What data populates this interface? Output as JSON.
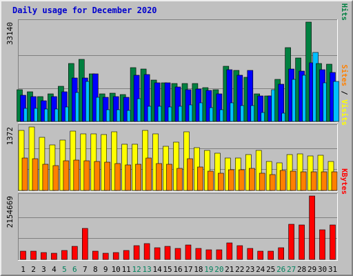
{
  "chart_data": {
    "type": "bar",
    "title": "Daily usage for December 2020",
    "categories": [
      "1",
      "2",
      "3",
      "4",
      "5",
      "6",
      "7",
      "8",
      "9",
      "10",
      "11",
      "12",
      "13",
      "14",
      "15",
      "16",
      "17",
      "18",
      "19",
      "20",
      "21",
      "22",
      "23",
      "24",
      "25",
      "26",
      "27",
      "28",
      "29",
      "30",
      "31"
    ],
    "weekend_days": [
      "5",
      "6",
      "12",
      "13",
      "19",
      "20",
      "26",
      "27"
    ],
    "colors": {
      "hits": "#008040",
      "files": "#0000ff",
      "pages": "#00c0ff",
      "visits": "#ffff00",
      "sites": "#ff8000",
      "kbytes": "#ff0000",
      "weekday_label": "#000000",
      "weekend_label": "#00805c",
      "panel_bg": "#c0c0c0",
      "title": "#0000cc"
    },
    "panels": [
      {
        "ymax_label": "33140",
        "ymax": 33140,
        "grid_fractions": [
          0.333,
          0.667
        ],
        "right_labels": [
          {
            "text": "Pages",
            "color": "#00c0ff"
          },
          {
            "text": " / ",
            "color": "#000000"
          },
          {
            "text": "Files",
            "color": "#0000ff"
          },
          {
            "text": " / ",
            "color": "#000000"
          },
          {
            "text": "Hits",
            "color": "#008040"
          }
        ],
        "series": [
          {
            "name": "Hits",
            "color": "#008040",
            "values": [
              10500,
              9900,
              8300,
              9200,
              11800,
              19300,
              20700,
              15800,
              9200,
              9400,
              9000,
              17900,
              17600,
              13900,
              12900,
              12700,
              12600,
              12600,
              11200,
              10700,
              18400,
              17000,
              14700,
              9300,
              8600,
              14100,
              24600,
              21200,
              33140,
              19400,
              19100
            ]
          },
          {
            "name": "Files",
            "color": "#0000ff",
            "values": [
              8800,
              8300,
              7000,
              8300,
              9800,
              14500,
              14500,
              15800,
              8000,
              8300,
              8000,
              15400,
              15600,
              13000,
              12800,
              11500,
              10700,
              10900,
              10400,
              9100,
              17300,
              15400,
              17000,
              8600,
              8600,
              12500,
              17400,
              16800,
              19500,
              17200,
              16300
            ]
          },
          {
            "name": "Pages",
            "color": "#00c0ff",
            "values": [
              4400,
              4300,
              4200,
              4100,
              4900,
              9600,
              13400,
              8100,
              3800,
              4000,
              3700,
              7600,
              5000,
              5100,
              4900,
              5000,
              5500,
              6200,
              4500,
              3800,
              6100,
              5400,
              5200,
              3000,
              10500,
              2800,
              14100,
              15400,
              23000,
              12800,
              13400
            ]
          }
        ]
      },
      {
        "ymax_label": "1372",
        "ymax": 1372,
        "grid_fractions": [
          0.333,
          0.667
        ],
        "right_labels": [
          {
            "text": "Sites",
            "color": "#ff8000"
          },
          {
            "text": " / ",
            "color": "#000000"
          },
          {
            "text": "Visits",
            "color": "#ffff00"
          }
        ],
        "series": [
          {
            "name": "Visits",
            "color": "#ffff00",
            "values": [
              1290,
              1372,
              1150,
              980,
              1085,
              1285,
              1230,
              1230,
              1210,
              1270,
              1000,
              1000,
              1290,
              1230,
              960,
              1050,
              1270,
              930,
              870,
              800,
              700,
              700,
              780,
              870,
              630,
              590,
              780,
              790,
              750,
              760,
              625
            ]
          },
          {
            "name": "Sites",
            "color": "#ff8000",
            "values": [
              700,
              690,
              570,
              530,
              640,
              650,
              640,
              620,
              610,
              580,
              550,
              560,
              700,
              580,
              560,
              470,
              680,
              500,
              420,
              370,
              440,
              440,
              470,
              380,
              350,
              430,
              420,
              410,
              410,
              410,
              400
            ]
          }
        ]
      },
      {
        "ymax_label": "2154669",
        "ymax": 2154669,
        "grid_fractions": [
          0.333,
          0.667
        ],
        "right_labels": [
          {
            "text": "KBytes",
            "color": "#ff0000"
          }
        ],
        "series": [
          {
            "name": "KBytes",
            "color": "#ff0000",
            "values": [
              280000,
              290000,
              230000,
              210000,
              310000,
              450000,
              1050000,
              290000,
              220000,
              230000,
              310000,
              480000,
              540000,
              390000,
              450000,
              370000,
              500000,
              380000,
              320000,
              330000,
              560000,
              470000,
              380000,
              290000,
              290000,
              400000,
              1200000,
              1160000,
              2154669,
              1000000,
              1170000
            ]
          }
        ]
      }
    ]
  }
}
